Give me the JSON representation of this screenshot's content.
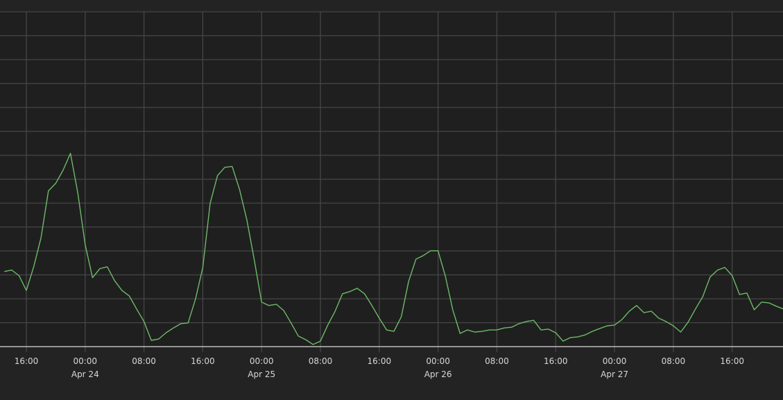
{
  "chart_data": {
    "type": "line",
    "title": "",
    "xlabel": "",
    "ylabel": "",
    "ylim": [
      0,
      14
    ],
    "xlim": [
      "04-23 12:25",
      "04-27 22:55"
    ],
    "grid": true,
    "y_tick_labels_shown": false,
    "colors": {
      "background": "#1f1f1f",
      "grid": "#464646",
      "baseline": "#d9d9d9",
      "line": "#6dbb67",
      "text": "#d8d8d8"
    },
    "x_ticks": [
      {
        "time": "04-23 16:00",
        "label": "16:00",
        "date": ""
      },
      {
        "time": "04-24 00:00",
        "label": "00:00",
        "date": "Apr 24"
      },
      {
        "time": "04-24 08:00",
        "label": "08:00",
        "date": ""
      },
      {
        "time": "04-24 16:00",
        "label": "16:00",
        "date": ""
      },
      {
        "time": "04-25 00:00",
        "label": "00:00",
        "date": "Apr 25"
      },
      {
        "time": "04-25 08:00",
        "label": "08:00",
        "date": ""
      },
      {
        "time": "04-25 16:00",
        "label": "16:00",
        "date": ""
      },
      {
        "time": "04-26 00:00",
        "label": "00:00",
        "date": "Apr 26"
      },
      {
        "time": "04-26 08:00",
        "label": "08:00",
        "date": ""
      },
      {
        "time": "04-26 16:00",
        "label": "16:00",
        "date": ""
      },
      {
        "time": "04-27 00:00",
        "label": "00:00",
        "date": "Apr 27"
      },
      {
        "time": "04-27 08:00",
        "label": "08:00",
        "date": ""
      },
      {
        "time": "04-27 16:00",
        "label": "16:00",
        "date": ""
      }
    ],
    "series": [
      {
        "x": [
          "04-23 13:00",
          "04-23 14:00",
          "04-23 15:00",
          "04-23 16:00",
          "04-23 17:00",
          "04-23 18:00",
          "04-23 19:00",
          "04-23 20:00",
          "04-23 21:00",
          "04-23 22:00",
          "04-23 23:00",
          "04-24 00:00",
          "04-24 01:00",
          "04-24 02:00",
          "04-24 03:00",
          "04-24 04:00",
          "04-24 05:00",
          "04-24 06:00",
          "04-24 07:00",
          "04-24 08:00",
          "04-24 09:00",
          "04-24 10:00",
          "04-24 11:00",
          "04-24 12:00",
          "04-24 13:00",
          "04-24 14:00",
          "04-24 15:00",
          "04-24 16:00",
          "04-24 17:00",
          "04-24 18:00",
          "04-24 19:00",
          "04-24 20:00",
          "04-24 21:00",
          "04-24 22:00",
          "04-24 23:00",
          "04-25 00:00",
          "04-25 01:00",
          "04-25 02:00",
          "04-25 03:00",
          "04-25 04:00",
          "04-25 05:00",
          "04-25 06:00",
          "04-25 07:00",
          "04-25 08:00",
          "04-25 09:00",
          "04-25 10:00",
          "04-25 11:00",
          "04-25 12:00",
          "04-25 13:00",
          "04-25 14:00",
          "04-25 15:00",
          "04-25 16:00",
          "04-25 17:00",
          "04-25 18:00",
          "04-25 19:00",
          "04-25 20:00",
          "04-25 21:00",
          "04-25 22:00",
          "04-25 23:00",
          "04-26 00:00",
          "04-26 01:00",
          "04-26 02:00",
          "04-26 03:00",
          "04-26 04:00",
          "04-26 05:00",
          "04-26 06:00",
          "04-26 07:00",
          "04-26 08:00",
          "04-26 09:00",
          "04-26 10:00",
          "04-26 11:00",
          "04-26 12:00",
          "04-26 13:00",
          "04-26 14:00",
          "04-26 15:00",
          "04-26 16:00",
          "04-26 17:00",
          "04-26 18:00",
          "04-26 19:00",
          "04-26 20:00",
          "04-26 21:00",
          "04-26 22:00",
          "04-26 23:00",
          "04-27 00:00",
          "04-27 01:00",
          "04-27 02:00",
          "04-27 03:00",
          "04-27 04:00",
          "04-27 05:00",
          "04-27 06:00",
          "04-27 07:00",
          "04-27 08:00",
          "04-27 09:00",
          "04-27 10:00",
          "04-27 11:00",
          "04-27 12:00",
          "04-27 13:00",
          "04-27 14:00",
          "04-27 15:00",
          "04-27 16:00",
          "04-27 17:00",
          "04-27 18:00",
          "04-27 19:00",
          "04-27 20:00",
          "04-27 21:00",
          "04-27 22:00",
          "04-27 23:00"
        ],
        "values": [
          3.14,
          3.2,
          2.97,
          2.35,
          3.34,
          4.56,
          6.51,
          6.83,
          7.38,
          8.08,
          6.42,
          4.27,
          2.88,
          3.26,
          3.34,
          2.76,
          2.35,
          2.12,
          1.57,
          1.05,
          0.26,
          0.32,
          0.58,
          0.78,
          0.96,
          0.99,
          1.98,
          3.31,
          5.99,
          7.15,
          7.5,
          7.53,
          6.57,
          5.29,
          3.63,
          1.86,
          1.72,
          1.77,
          1.51,
          0.99,
          0.44,
          0.29,
          0.09,
          0.23,
          0.9,
          1.48,
          2.21,
          2.3,
          2.44,
          2.21,
          1.72,
          1.19,
          0.7,
          0.64,
          1.25,
          2.73,
          3.66,
          3.81,
          4.01,
          4.01,
          2.94,
          1.54,
          0.55,
          0.7,
          0.61,
          0.64,
          0.7,
          0.7,
          0.78,
          0.81,
          0.96,
          1.05,
          1.1,
          0.7,
          0.73,
          0.58,
          0.23,
          0.38,
          0.41,
          0.49,
          0.64,
          0.76,
          0.87,
          0.9,
          1.13,
          1.48,
          1.72,
          1.42,
          1.48,
          1.19,
          1.05,
          0.87,
          0.61,
          1.02,
          1.57,
          2.09,
          2.91,
          3.2,
          3.31,
          2.97,
          2.18,
          2.24,
          1.54,
          1.86,
          1.83,
          1.69,
          1.57
        ]
      }
    ]
  }
}
